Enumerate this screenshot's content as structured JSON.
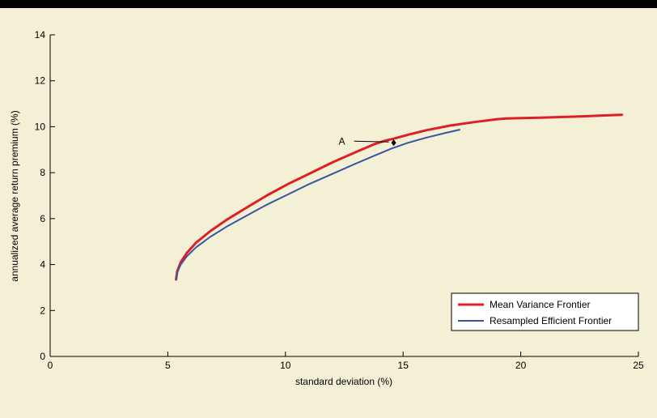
{
  "chart_data": {
    "type": "line",
    "title": "",
    "xlabel": "standard deviation (%)",
    "ylabel": "annualized average return premium (%)",
    "xlim": [
      0,
      25
    ],
    "ylim": [
      0,
      14
    ],
    "xticks": [
      0,
      5,
      10,
      15,
      20,
      25
    ],
    "yticks": [
      0,
      2,
      4,
      6,
      8,
      10,
      12,
      14
    ],
    "grid": false,
    "legend_position": "lower-right",
    "series": [
      {
        "name": "Mean Variance Frontier",
        "color": "#dd1f26",
        "x": [
          5.35,
          5.4,
          5.55,
          5.8,
          6.2,
          6.8,
          7.5,
          8.3,
          9.2,
          10.1,
          11.0,
          12.0,
          13.0,
          13.8,
          14.2,
          14.6,
          15.2,
          16.0,
          17.0,
          18.0,
          19.0,
          19.4,
          21.0,
          22.5,
          24.3
        ],
        "y": [
          3.35,
          3.7,
          4.1,
          4.5,
          4.95,
          5.45,
          5.95,
          6.45,
          7.0,
          7.5,
          7.95,
          8.45,
          8.9,
          9.25,
          9.38,
          9.48,
          9.65,
          9.85,
          10.05,
          10.2,
          10.33,
          10.36,
          10.4,
          10.45,
          10.52
        ]
      },
      {
        "name": "Resampled Efficient Frontier",
        "color": "#3a54a4",
        "x": [
          5.35,
          5.4,
          5.55,
          5.8,
          6.2,
          6.8,
          7.5,
          8.3,
          9.2,
          10.1,
          11.0,
          12.0,
          13.0,
          13.8,
          14.5,
          15.2,
          16.0,
          16.8,
          17.4
        ],
        "y": [
          3.35,
          3.65,
          4.0,
          4.35,
          4.75,
          5.2,
          5.65,
          6.1,
          6.6,
          7.05,
          7.5,
          7.95,
          8.4,
          8.75,
          9.05,
          9.3,
          9.53,
          9.73,
          9.87
        ]
      }
    ],
    "points": [
      {
        "label": "A",
        "x": 14.6,
        "y": 9.3
      }
    ]
  }
}
